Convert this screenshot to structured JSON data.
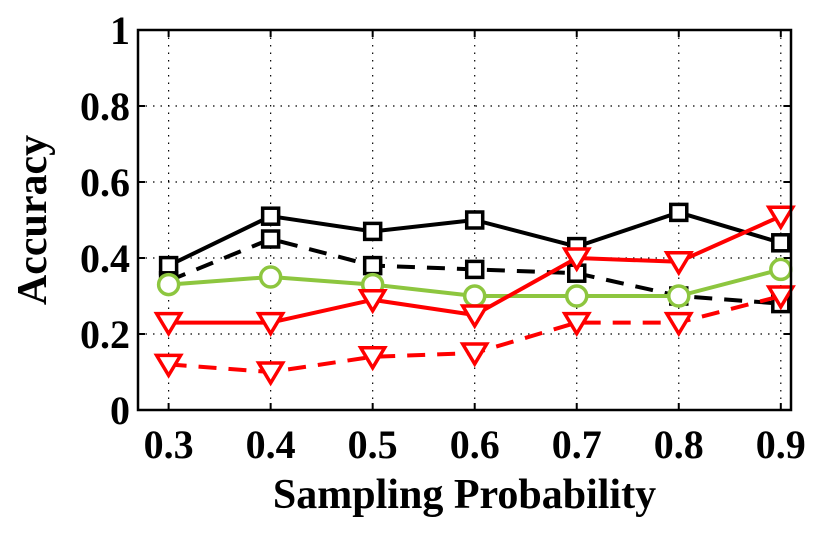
{
  "chart_data": {
    "type": "line",
    "title": "",
    "xlabel": "Sampling Probability",
    "ylabel": "Accuracy",
    "x": [
      0.3,
      0.4,
      0.5,
      0.6,
      0.7,
      0.8,
      0.9
    ],
    "x_tick_labels": [
      "0.3",
      "0.4",
      "0.5",
      "0.6",
      "0.7",
      "0.8",
      "0.9"
    ],
    "y_tick_labels": [
      "0",
      "0.2",
      "0.4",
      "0.6",
      "0.8",
      "1"
    ],
    "y_ticks": [
      0,
      0.2,
      0.4,
      0.6,
      0.8,
      1
    ],
    "xlim": [
      0.27,
      0.91
    ],
    "ylim": [
      0,
      1
    ],
    "grid": true,
    "legend": "none",
    "series": [
      {
        "values": [
          0.38,
          0.51,
          0.47,
          0.5,
          0.43,
          0.52,
          0.44
        ],
        "color": "#000000",
        "line_style": "solid",
        "marker": "square"
      },
      {
        "values": [
          0.34,
          0.45,
          0.38,
          0.37,
          0.36,
          0.3,
          0.28
        ],
        "color": "#000000",
        "line_style": "dashed",
        "marker": "square"
      },
      {
        "values": [
          0.33,
          0.35,
          0.33,
          0.3,
          0.3,
          0.3,
          0.37
        ],
        "color": "#8dc63f",
        "line_style": "solid",
        "marker": "circle"
      },
      {
        "values": [
          0.23,
          0.23,
          0.29,
          0.25,
          0.4,
          0.39,
          0.51
        ],
        "color": "#ff0000",
        "line_style": "solid",
        "marker": "triangle-down"
      },
      {
        "values": [
          0.12,
          0.1,
          0.14,
          0.15,
          0.23,
          0.23,
          0.3
        ],
        "color": "#ff0000",
        "line_style": "dashed",
        "marker": "triangle-down"
      }
    ]
  }
}
